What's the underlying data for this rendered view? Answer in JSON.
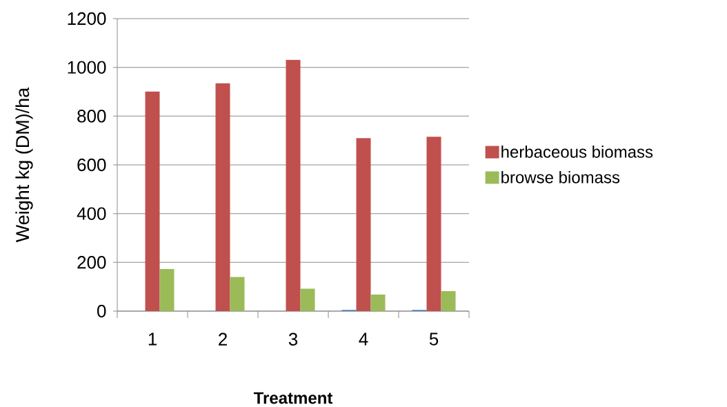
{
  "chart_data": {
    "type": "bar",
    "xlabel": "Treatment",
    "ylabel": "Weight kg (DM)/ha",
    "categories": [
      "1",
      "2",
      "3",
      "4",
      "5"
    ],
    "series": [
      {
        "color": "#4f81bd",
        "values": [
          null,
          null,
          null,
          5,
          5
        ]
      },
      {
        "name": "herbaceous biomass",
        "color": "#c0504d",
        "values": [
          901,
          935,
          1031,
          710,
          715
        ]
      },
      {
        "name": "browse biomass",
        "color": "#9bbb59",
        "values": [
          173,
          140,
          92,
          68,
          82
        ]
      }
    ],
    "ylim": [
      0,
      1200
    ],
    "yticks": [
      0,
      200,
      400,
      600,
      800,
      1000,
      1200
    ],
    "grid": "y",
    "legend": "right"
  }
}
